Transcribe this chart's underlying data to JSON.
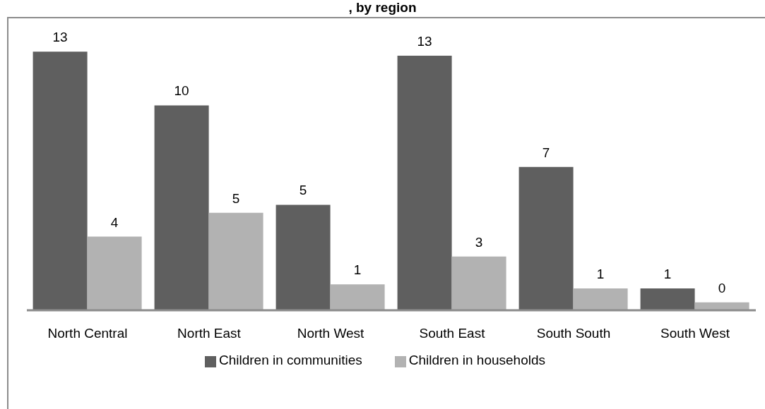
{
  "chart_data": {
    "type": "bar",
    "title": ", by region",
    "categories": [
      "North Central",
      "North East",
      "North West",
      "South East",
      "South South",
      "South West"
    ],
    "series": [
      {
        "name": "Children in communities",
        "color": "#5f5f5f",
        "values": [
          13.0,
          10.3,
          5.3,
          12.8,
          7.2,
          1.1
        ],
        "value_labels": [
          "13",
          "10",
          "5",
          "13",
          "7",
          "1"
        ]
      },
      {
        "name": "Children in households",
        "color": "#b2b2b2",
        "values": [
          3.7,
          4.9,
          1.3,
          2.7,
          1.1,
          0.4
        ],
        "value_labels": [
          "4",
          "5",
          "1",
          "3",
          "1",
          "0"
        ]
      }
    ],
    "legend": "bottom",
    "grid": false
  }
}
